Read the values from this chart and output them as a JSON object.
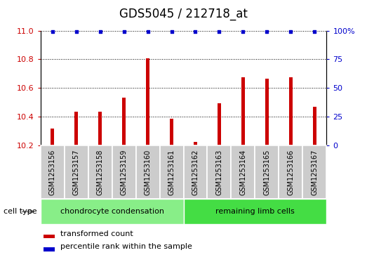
{
  "title": "GDS5045 / 212718_at",
  "samples": [
    "GSM1253156",
    "GSM1253157",
    "GSM1253158",
    "GSM1253159",
    "GSM1253160",
    "GSM1253161",
    "GSM1253162",
    "GSM1253163",
    "GSM1253164",
    "GSM1253165",
    "GSM1253166",
    "GSM1253167"
  ],
  "transformed_count": [
    10.315,
    10.435,
    10.435,
    10.535,
    10.805,
    10.385,
    10.225,
    10.495,
    10.675,
    10.665,
    10.675,
    10.47
  ],
  "percentile_rank": [
    99,
    99,
    99,
    99,
    99,
    99,
    99,
    99,
    99,
    99,
    99,
    99
  ],
  "ylim_left": [
    10.2,
    11.0
  ],
  "ylim_right": [
    0,
    100
  ],
  "yticks_left": [
    10.2,
    10.4,
    10.6,
    10.8,
    11.0
  ],
  "yticks_right": [
    0,
    25,
    50,
    75,
    100
  ],
  "bar_color": "#cc0000",
  "dot_color": "#0000cc",
  "group1_label": "chondrocyte condensation",
  "group2_label": "remaining limb cells",
  "group1_count": 6,
  "group2_count": 6,
  "cell_type_label": "cell type",
  "legend_bar_label": "transformed count",
  "legend_dot_label": "percentile rank within the sample",
  "group1_color": "#88ee88",
  "group2_color": "#44dd44",
  "sample_bg_color": "#cccccc",
  "title_fontsize": 12,
  "tick_fontsize": 8,
  "label_fontsize": 8,
  "bar_width": 0.12
}
